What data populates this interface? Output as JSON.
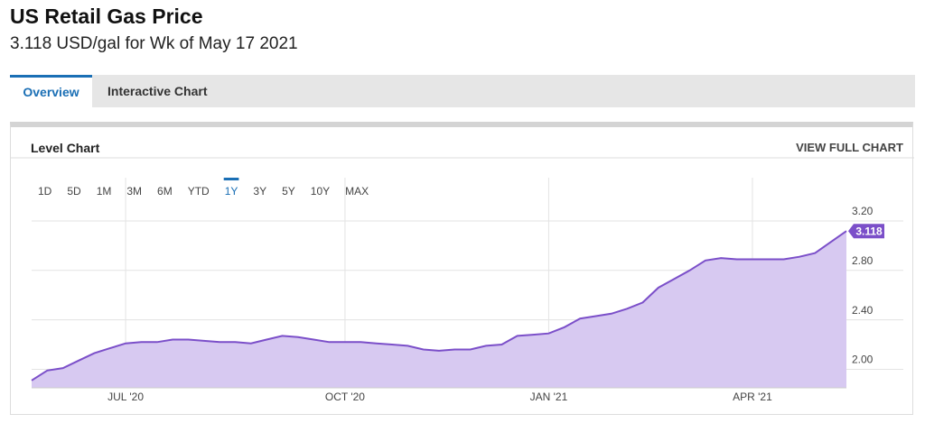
{
  "header": {
    "title": "US Retail Gas Price",
    "subtitle": "3.118 USD/gal for Wk of May 17 2021"
  },
  "tabs": [
    "Overview",
    "Interactive Chart"
  ],
  "card": {
    "title": "Level Chart",
    "action": "VIEW FULL CHART"
  },
  "ranges": [
    "1D",
    "5D",
    "1M",
    "3M",
    "6M",
    "YTD",
    "1Y",
    "3Y",
    "5Y",
    "10Y",
    "MAX"
  ],
  "active_range": "1Y",
  "chart_data": {
    "type": "area",
    "categories": [
      null,
      null,
      null,
      null,
      null,
      null,
      "JUL '20",
      null,
      null,
      null,
      null,
      null,
      null,
      null,
      null,
      null,
      null,
      null,
      null,
      null,
      "OCT '20",
      null,
      null,
      null,
      null,
      null,
      null,
      null,
      null,
      null,
      null,
      null,
      null,
      "JAN '21",
      null,
      null,
      null,
      null,
      null,
      null,
      null,
      null,
      null,
      null,
      null,
      null,
      "APR '21",
      null,
      null,
      null,
      null,
      null,
      null
    ],
    "values": [
      1.91,
      1.99,
      2.01,
      2.07,
      2.13,
      2.17,
      2.21,
      2.22,
      2.22,
      2.24,
      2.24,
      2.23,
      2.22,
      2.22,
      2.21,
      2.24,
      2.27,
      2.26,
      2.24,
      2.22,
      2.22,
      2.22,
      2.21,
      2.2,
      2.19,
      2.16,
      2.15,
      2.16,
      2.16,
      2.19,
      2.2,
      2.27,
      2.28,
      2.29,
      2.34,
      2.41,
      2.43,
      2.45,
      2.49,
      2.54,
      2.66,
      2.73,
      2.8,
      2.88,
      2.9,
      2.89,
      2.89,
      2.89,
      2.89,
      2.91,
      2.94,
      3.03,
      3.118
    ],
    "color": "#7b4fc9",
    "fill": "#d7c9f1",
    "ylim": [
      1.85,
      3.55
    ],
    "yticks": [
      {
        "value": 2,
        "label": "2.00"
      },
      {
        "value": 2.4,
        "label": "2.40"
      },
      {
        "value": 2.8,
        "label": "2.80"
      },
      {
        "value": 3.2,
        "label": "3.20"
      }
    ],
    "grid": true
  }
}
